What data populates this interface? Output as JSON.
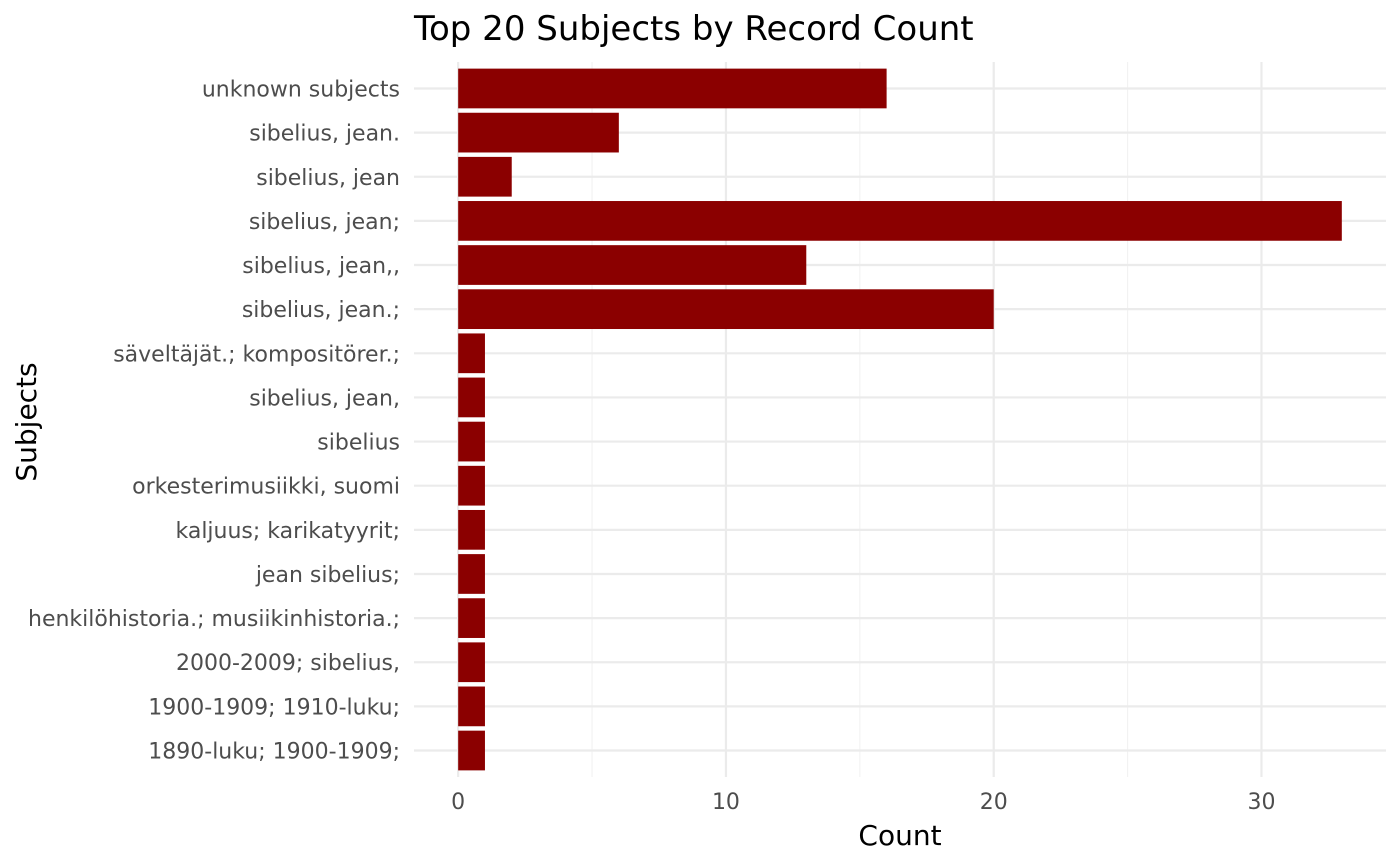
{
  "chart_data": {
    "type": "bar",
    "orientation": "horizontal",
    "title": "Top 20 Subjects by Record Count",
    "xlabel": "Count",
    "ylabel": "Subjects",
    "categories": [
      "unknown subjects",
      "sibelius, jean.",
      "sibelius, jean",
      "sibelius, jean;",
      "sibelius, jean,,",
      "sibelius, jean.;",
      "säveltäjät.; kompositörer.;",
      "sibelius, jean,",
      "sibelius",
      "orkesterimusiikki, suomi",
      "kaljuus; karikatyyrit;",
      "jean sibelius;",
      "henkilöhistoria.; musiikinhistoria.;",
      "2000-2009; sibelius,",
      "1900-1909; 1910-luku;",
      "1890-luku; 1900-1909;"
    ],
    "values": [
      16,
      6,
      2,
      33,
      13,
      20,
      1,
      1,
      1,
      1,
      1,
      1,
      1,
      1,
      1,
      1
    ],
    "x_ticks": [
      0,
      10,
      20,
      30
    ],
    "xlim": [
      -1.65,
      34.65
    ],
    "bar_color": "#8b0000",
    "grid": true,
    "legend": "none"
  }
}
